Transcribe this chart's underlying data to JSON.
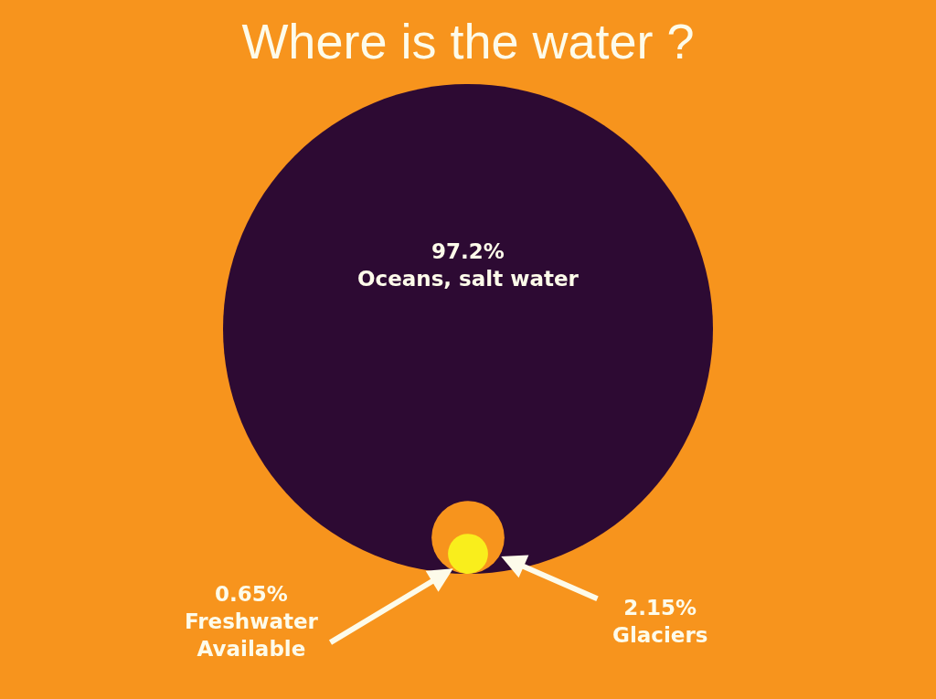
{
  "chart_data": {
    "type": "other",
    "title": "Where is the water ?",
    "categories": [
      "Oceans, salt water",
      "Glaciers",
      "Freshwater\nAvailable"
    ],
    "values": [
      97.2,
      2.15,
      0.65
    ],
    "colors": [
      "#2d0a33",
      "#f7941d",
      "#f9ee1c"
    ],
    "value_labels": [
      "97.2%",
      "2.15%",
      "0.65%"
    ]
  }
}
